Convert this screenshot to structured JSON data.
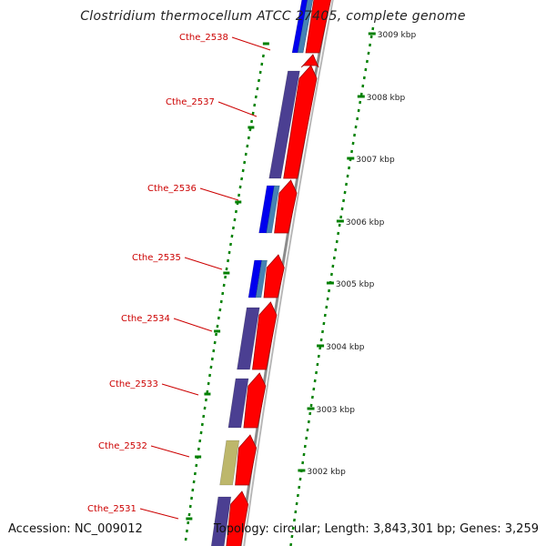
{
  "title": "Clostridium thermocellum ATCC 27405, complete genome",
  "accession": "Accession: NC_009012",
  "topology": "Topology: circular; Length: 3,843,301 bp; Genes: 3,259",
  "kbp_ticks": [
    "3009 kbp",
    "3008 kbp",
    "3007 kbp",
    "3006 kbp",
    "3005 kbp",
    "3004 kbp",
    "3003 kbp",
    "3002 kbp"
  ],
  "gene_labels": [
    "Cthe_2538",
    "Cthe_2537",
    "Cthe_2536",
    "Cthe_2535",
    "Cthe_2534",
    "Cthe_2533",
    "Cthe_2532",
    "Cthe_2531"
  ],
  "colors": {
    "cds": "#ff0000",
    "cog_purple": "#4b3f92",
    "cog_blue": "#0000ee",
    "cog_steel": "#4682b4",
    "cog_khaki": "#bdb76b",
    "backbone": "#8c8c8c",
    "tick_green": "#008000",
    "label_red": "#cc0000"
  }
}
